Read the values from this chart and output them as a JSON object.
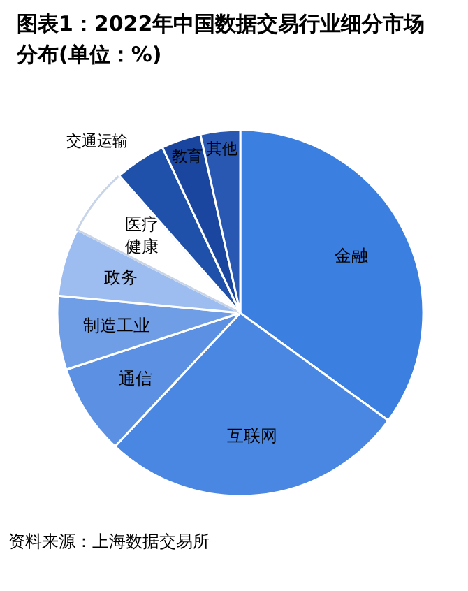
{
  "chart_data": {
    "type": "pie",
    "title": "图表1：2022年中国数据交易行业细分市场分布(单位：%)",
    "categories": [
      "金融",
      "互联网",
      "通信",
      "制造工业",
      "政务",
      "医疗健康",
      "交通运输",
      "教育",
      "其他"
    ],
    "values": [
      35,
      27,
      8,
      6.5,
      6,
      6,
      4.5,
      3.5,
      3.5
    ],
    "colors": [
      "#3b7fe0",
      "#4a87e2",
      "#5b90e2",
      "#6f9de6",
      "#9dbcf0",
      "#ffffff",
      "#1f50aa",
      "#1b46a0",
      "#2858b2"
    ],
    "annotations": [
      "资料来源：上海数据交易所"
    ]
  }
}
